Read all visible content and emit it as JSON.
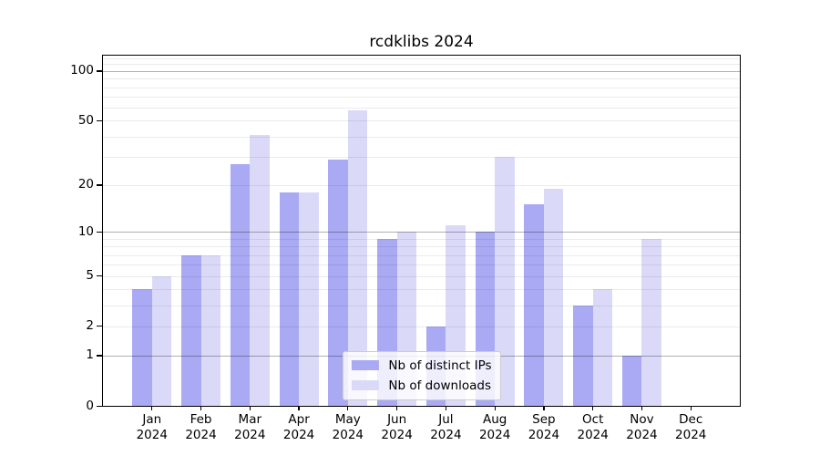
{
  "chart_data": {
    "type": "bar",
    "title": "rcdklibs 2024",
    "categories": [
      "Jan",
      "Feb",
      "Mar",
      "Apr",
      "May",
      "Jun",
      "Jul",
      "Aug",
      "Sep",
      "Oct",
      "Nov",
      "Dec"
    ],
    "category_year": "2024",
    "series": [
      {
        "name": "Nb of distinct IPs",
        "color": "#a9a9f4",
        "values": [
          4,
          7,
          27,
          18,
          29,
          9,
          2,
          10,
          15,
          3,
          1,
          0
        ]
      },
      {
        "name": "Nb of downloads",
        "color": "#dadaf8",
        "values": [
          5,
          7,
          41,
          18,
          58,
          10,
          11,
          30,
          19,
          4,
          9,
          0
        ]
      }
    ],
    "yscale": "log(x+1)",
    "ylim": [
      0,
      124
    ],
    "ytick_values": [
      0,
      1,
      2,
      5,
      10,
      20,
      50,
      100
    ],
    "ytick_labels": [
      "0",
      "1",
      "2",
      "5",
      "10",
      "20",
      "50",
      "100"
    ],
    "grid": {
      "major_values": [
        1,
        10,
        100
      ],
      "minor_values": [
        2,
        3,
        4,
        5,
        6,
        7,
        8,
        9,
        20,
        30,
        40,
        50,
        60,
        70,
        80,
        90,
        110,
        120
      ],
      "major_color": "#b0b0b0",
      "minor_color": "#ebebeb"
    },
    "legend": {
      "position": "lower center"
    },
    "colors": {
      "background": "#ffffff",
      "axis": "#000000",
      "text": "#000000"
    }
  }
}
